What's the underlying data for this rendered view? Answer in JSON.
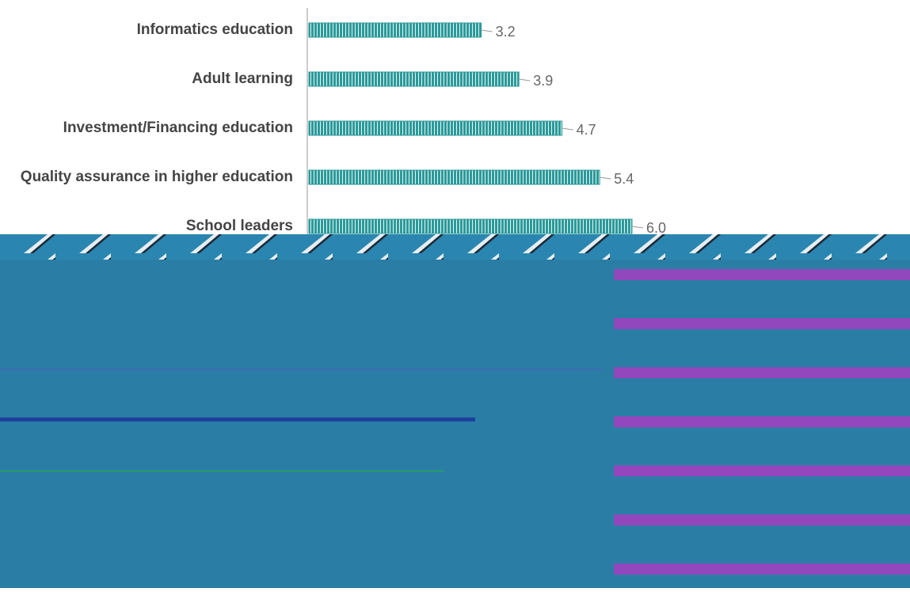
{
  "chart_data": {
    "type": "barh",
    "categories": [
      "Informatics education",
      "Adult learning",
      "Investment/Financing education",
      "Quality assurance in higher education",
      "School leaders"
    ],
    "values": [
      3.2,
      3.9,
      4.7,
      5.4,
      6.0
    ],
    "value_labels": [
      "3.2",
      "3.9",
      "4.7",
      "5.4",
      "6.0"
    ],
    "color": "#2b9a9a"
  }
}
